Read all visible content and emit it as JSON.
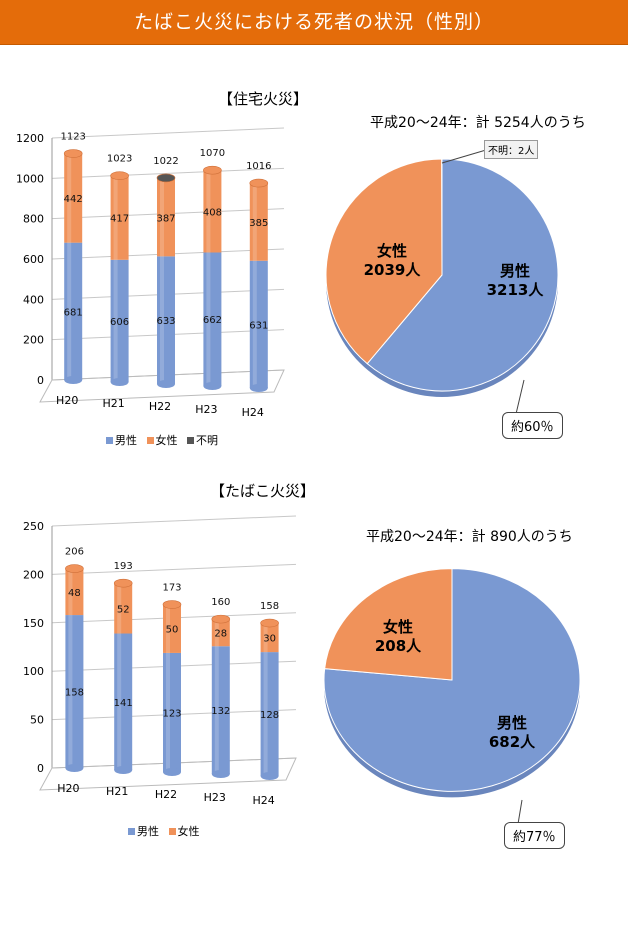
{
  "banner": {
    "title": "たばこ火災における死者の状況（性別）"
  },
  "colors": {
    "male": "#7a99d2",
    "female": "#f0925a",
    "unknown": "#555555",
    "banner": "#e46c0a"
  },
  "chart_data": [
    {
      "type": "bar",
      "title": "【住宅火災】",
      "categories": [
        "H20",
        "H21",
        "H22",
        "H23",
        "H24"
      ],
      "series": [
        {
          "name": "男性",
          "values": [
            681,
            606,
            633,
            662,
            631
          ]
        },
        {
          "name": "女性",
          "values": [
            442,
            417,
            387,
            408,
            385
          ]
        },
        {
          "name": "不明",
          "values": [
            0,
            0,
            2,
            0,
            0
          ]
        }
      ],
      "totals": [
        1123,
        1023,
        1022,
        1070,
        1016
      ],
      "yticks": [
        0,
        200,
        400,
        600,
        800,
        1000,
        1200
      ],
      "ylim": [
        0,
        1200
      ],
      "stacked": true
    },
    {
      "type": "pie",
      "title": "平成20～24年：計 5254人のうち",
      "slices": [
        {
          "label": "男性",
          "value": 3213,
          "text": "3213人"
        },
        {
          "label": "女性",
          "value": 2039,
          "text": "2039人"
        },
        {
          "label": "不明",
          "value": 2,
          "text": "不明：2人"
        }
      ],
      "callout": "約60％"
    },
    {
      "type": "bar",
      "title": "【たばこ火災】",
      "categories": [
        "H20",
        "H21",
        "H22",
        "H23",
        "H24"
      ],
      "series": [
        {
          "name": "男性",
          "values": [
            158,
            141,
            123,
            132,
            128
          ]
        },
        {
          "name": "女性",
          "values": [
            48,
            52,
            50,
            28,
            30
          ]
        }
      ],
      "totals": [
        206,
        193,
        173,
        160,
        158
      ],
      "yticks": [
        0,
        50,
        100,
        150,
        200,
        250
      ],
      "ylim": [
        0,
        250
      ],
      "stacked": true
    },
    {
      "type": "pie",
      "title": "平成20～24年：計 890人のうち",
      "slices": [
        {
          "label": "男性",
          "value": 682,
          "text": "682人"
        },
        {
          "label": "女性",
          "value": 208,
          "text": "208人"
        }
      ],
      "callout": "約77％"
    }
  ]
}
